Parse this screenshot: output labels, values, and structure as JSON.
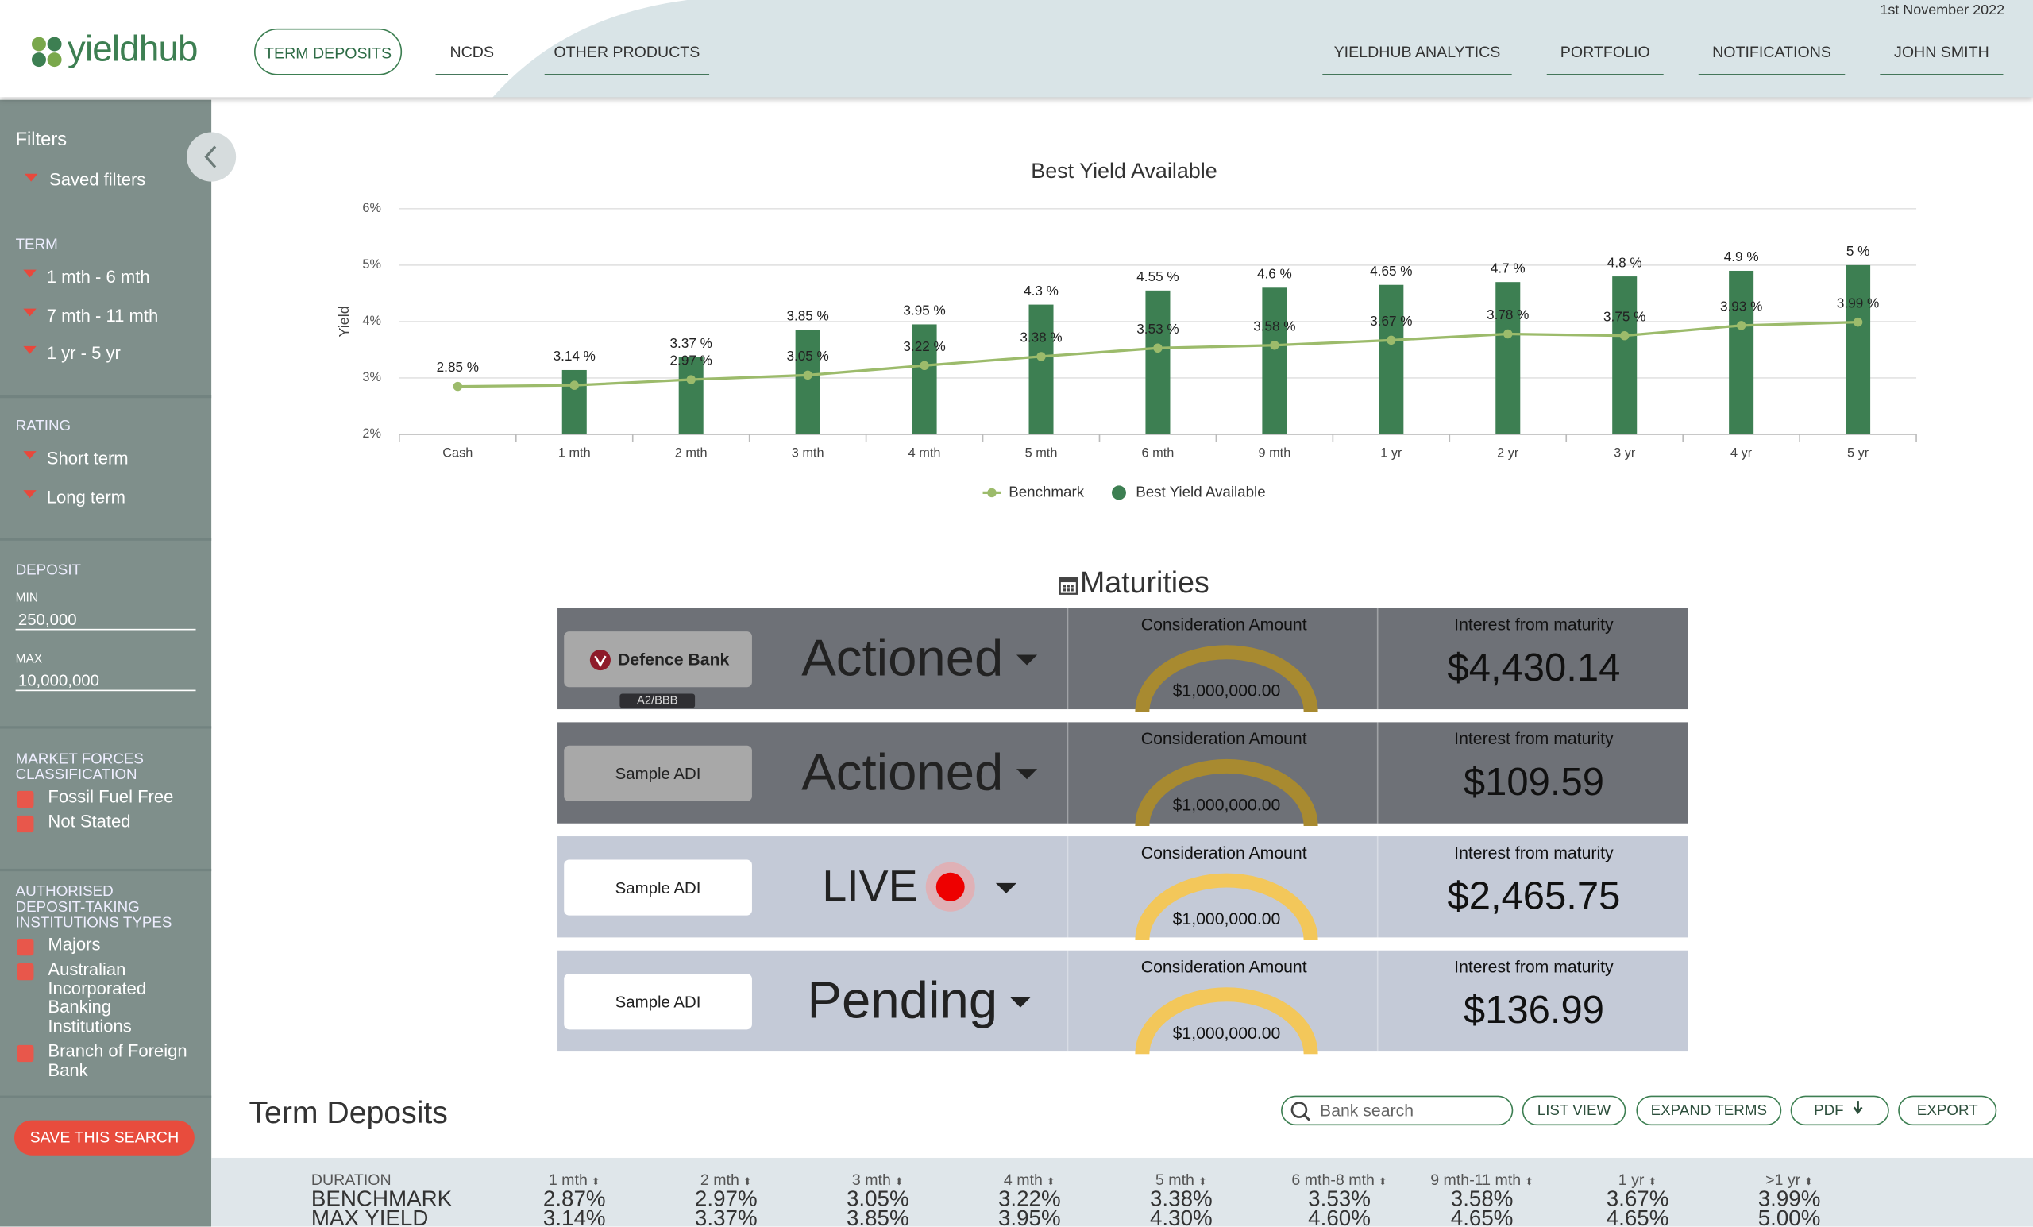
{
  "header": {
    "logo": "yieldhub",
    "date": "1st November 2022",
    "nav_left": [
      "TERM DEPOSITS",
      "NCDS",
      "OTHER PRODUCTS"
    ],
    "nav_right": [
      "YIELDHUB ANALYTICS",
      "PORTFOLIO",
      "NOTIFICATIONS",
      "JOHN SMITH"
    ]
  },
  "sidebar": {
    "title": "Filters",
    "saved_filters": "Saved filters",
    "sections": [
      {
        "heading": "TERM",
        "items": [
          "1 mth - 6 mth",
          "7 mth - 11 mth",
          "1 yr - 5 yr"
        ]
      },
      {
        "heading": "RATING",
        "items": [
          "Short term",
          "Long term"
        ]
      }
    ],
    "deposit": {
      "heading": "DEPOSIT",
      "min_label": "MIN",
      "min": "250,000",
      "max_label": "MAX",
      "max": "10,000,000"
    },
    "checkbox_sections": [
      {
        "heading": "MARKET FORCES CLASSIFICATION",
        "items": [
          "Fossil Fuel Free",
          "Not Stated"
        ]
      },
      {
        "heading": "AUTHORISED DEPOSIT-TAKING INSTITUTIONS TYPES",
        "items": [
          "Majors",
          "Australian Incorporated Banking Institutions",
          "Branch of Foreign Bank"
        ]
      }
    ],
    "save_button": "SAVE THIS SEARCH"
  },
  "chart_data": {
    "type": "bar",
    "title": "Best Yield Available",
    "y_label": "Yield",
    "categories": [
      "Cash",
      "1 mth",
      "2 mth",
      "3 mth",
      "4 mth",
      "5 mth",
      "6 mth",
      "9 mth",
      "1 yr",
      "2 yr",
      "3 yr",
      "4 yr",
      "5 yr"
    ],
    "series": [
      {
        "name": "Benchmark",
        "type": "line",
        "color": "#9cbb6b",
        "values": [
          2.85,
          2.87,
          2.97,
          3.05,
          3.22,
          3.38,
          3.53,
          3.58,
          3.67,
          3.78,
          3.75,
          3.93,
          3.99
        ],
        "value_labels": [
          "2.85 %",
          null,
          "2.97 %",
          "3.05 %",
          "3.22 %",
          "3.38 %",
          "3.53 %",
          "3.58 %",
          "3.67 %",
          "3.78 %",
          "3.75 %",
          "3.93 %",
          "3.99 %"
        ]
      },
      {
        "name": "Best Yield Available",
        "type": "bar",
        "color": "#3d7f52",
        "values": [
          null,
          3.14,
          3.37,
          3.85,
          3.95,
          4.3,
          4.55,
          4.6,
          4.65,
          4.7,
          4.8,
          4.9,
          5
        ],
        "value_labels": [
          null,
          "3.14 %",
          "3.37 %",
          "3.85 %",
          "3.95 %",
          "4.3 %",
          "4.55 %",
          "4.6 %",
          "4.65 %",
          "4.7 %",
          "4.8 %",
          "4.9 %",
          "5 %"
        ]
      }
    ],
    "ylim": [
      2,
      6
    ],
    "yticks": [
      {
        "value": 2,
        "label": "2%"
      },
      {
        "value": 3,
        "label": "3%"
      },
      {
        "value": 4,
        "label": "4%"
      },
      {
        "value": 5,
        "label": "5%"
      },
      {
        "value": 6,
        "label": "6%"
      }
    ],
    "grid": true,
    "legend": "bottom"
  },
  "maturities": {
    "title": "Maturities",
    "consideration_label": "Consideration Amount",
    "interest_label": "Interest from maturity",
    "rows": [
      {
        "bank": "Defence Bank",
        "rating": "A2/BBB",
        "status": "Actioned",
        "amount": "$1,000,000.00",
        "interest": "$4,430.14"
      },
      {
        "bank": "Sample ADI",
        "status": "Actioned",
        "amount": "$1,000,000.00",
        "interest": "$109.59"
      },
      {
        "bank": "Sample ADI",
        "status": "LIVE",
        "amount": "$1,000,000.00",
        "interest": "$2,465.75"
      },
      {
        "bank": "Sample ADI",
        "status": "Pending",
        "amount": "$1,000,000.00",
        "interest": "$136.99"
      }
    ]
  },
  "term_deposits": {
    "title": "Term Deposits",
    "search_placeholder": "Bank search",
    "buttons": [
      "LIST VIEW",
      "EXPAND TERMS",
      "PDF",
      "EXPORT"
    ],
    "table": {
      "header": [
        "DURATION",
        "1 mth",
        "2 mth",
        "3 mth",
        "4 mth",
        "5 mth",
        "6 mth-8 mth",
        "9 mth-11 mth",
        "1 yr",
        ">1 yr"
      ],
      "rows": [
        [
          "BENCHMARK",
          "2.87%",
          "2.97%",
          "3.05%",
          "3.22%",
          "3.38%",
          "3.53%",
          "3.58%",
          "3.67%",
          "3.99%"
        ],
        [
          "MAX YIELD",
          "3.14%",
          "3.37%",
          "3.85%",
          "3.95%",
          "4.30%",
          "4.60%",
          "4.65%",
          "4.65%",
          "5.00%"
        ]
      ]
    }
  }
}
